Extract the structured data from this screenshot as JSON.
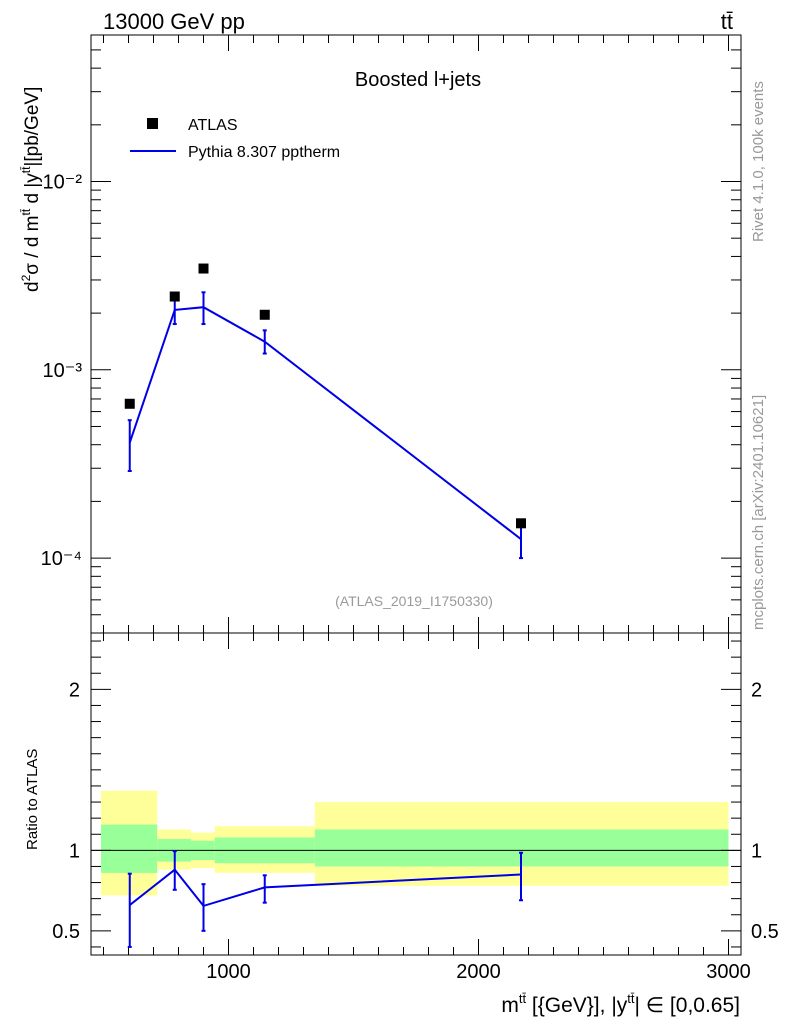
{
  "header": {
    "left": "13000 GeV pp",
    "right": "tt̄"
  },
  "side_labels": {
    "rivet": "Rivet 4.1.0,  100k events",
    "mcplots": "mcplots.cern.ch [arXiv:2401.10621]"
  },
  "colors": {
    "data": "#000000",
    "mc": "#0000e6",
    "band_inner": "#99ff99",
    "band_outer": "#ffff99",
    "ref_line": "#000000",
    "watermark": "#9a9a9a"
  },
  "chart_data": [
    {
      "type": "scatter",
      "panel": "main",
      "title": "Boosted l+jets",
      "watermark": "(ATLAS_2019_I1750330)",
      "ylabel": "d²σ / d m^tt̄ d |y^tt̄| [pb/GeV]",
      "yscale": "log",
      "ylim": [
        4e-05,
        0.06
      ],
      "xlim": [
        450,
        3050
      ],
      "y_tick_labels": [
        "10⁻⁴",
        "10⁻³",
        "10⁻²"
      ],
      "legend": {
        "position": "top-left",
        "entries": [
          "ATLAS",
          "Pythia 8.307 pptherm"
        ]
      },
      "series": [
        {
          "name": "ATLAS",
          "kind": "points",
          "x": [
            605,
            785,
            900,
            1145,
            2170
          ],
          "y": [
            0.00066,
            0.00245,
            0.00345,
            0.00196,
            0.000153
          ]
        },
        {
          "name": "Pythia 8.307 pptherm",
          "kind": "line",
          "x": [
            605,
            785,
            900,
            1145,
            2170
          ],
          "y": [
            0.00041,
            0.00208,
            0.00215,
            0.00141,
            0.000126
          ],
          "err_low": [
            0.00029,
            0.00175,
            0.00175,
            0.00122,
            0.0001
          ],
          "err_high": [
            0.00054,
            0.00238,
            0.00258,
            0.00162,
            0.000153
          ]
        }
      ]
    },
    {
      "type": "line",
      "panel": "ratio",
      "ylabel": "Ratio to ATLAS",
      "xlabel": "m^tt̄ [{GeV}], |y^tt̄| ∈ [0,0.65]",
      "ylim": [
        0.35,
        2.35
      ],
      "xlim": [
        450,
        3050
      ],
      "x_tick_labels": [
        "1000",
        "2000",
        "3000"
      ],
      "y_tick_labels": [
        "0.5",
        "1",
        "2"
      ],
      "bins": [
        [
          490,
          715
        ],
        [
          715,
          850
        ],
        [
          850,
          945
        ],
        [
          945,
          1345
        ],
        [
          1345,
          3000
        ]
      ],
      "band_inner": [
        [
          0.86,
          1.16
        ],
        [
          0.93,
          1.07
        ],
        [
          0.94,
          1.06
        ],
        [
          0.92,
          1.08
        ],
        [
          0.9,
          1.13
        ]
      ],
      "band_outer": [
        [
          0.72,
          1.37
        ],
        [
          0.88,
          1.13
        ],
        [
          0.89,
          1.11
        ],
        [
          0.86,
          1.15
        ],
        [
          0.78,
          1.3
        ]
      ],
      "series": [
        {
          "name": "Pythia 8.307 pptherm",
          "x": [
            605,
            785,
            900,
            1145,
            2170
          ],
          "y": [
            0.66,
            0.88,
            0.655,
            0.77,
            0.85
          ],
          "err_low": [
            0.4,
            0.755,
            0.5,
            0.675,
            0.69
          ],
          "err_high": [
            0.855,
            0.995,
            0.79,
            0.845,
            0.985
          ]
        }
      ]
    }
  ]
}
